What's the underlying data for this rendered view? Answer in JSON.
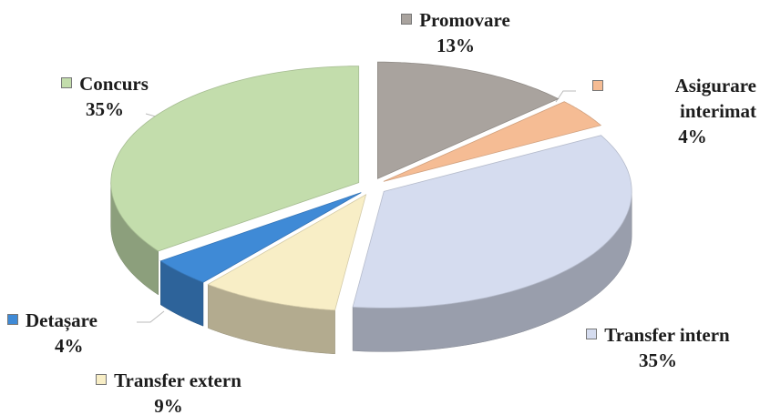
{
  "chart_data": {
    "type": "pie",
    "categories": [
      "Promovare",
      "Asigurare interimat",
      "Transfer intern",
      "Transfer extern",
      "Detașare",
      "Concurs"
    ],
    "values": [
      13,
      4,
      35,
      9,
      4,
      35
    ],
    "value_labels": [
      "13%",
      "4%",
      "35%",
      "9%",
      "4%",
      "35%"
    ],
    "colors": [
      "#a9a39e",
      "#f5bc94",
      "#d5dcef",
      "#f8eec6",
      "#3f8ad6",
      "#c3ddac"
    ]
  }
}
